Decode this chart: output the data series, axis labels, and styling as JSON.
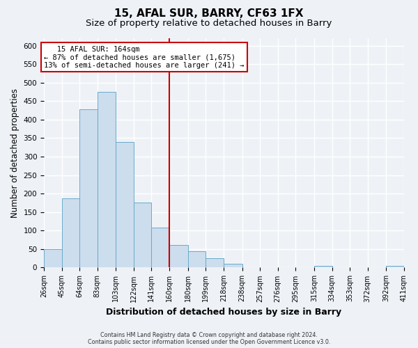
{
  "title": "15, AFAL SUR, BARRY, CF63 1FX",
  "subtitle": "Size of property relative to detached houses in Barry",
  "xlabel": "Distribution of detached houses by size in Barry",
  "ylabel": "Number of detached properties",
  "footer_line1": "Contains HM Land Registry data © Crown copyright and database right 2024.",
  "footer_line2": "Contains public sector information licensed under the Open Government Licence v3.0.",
  "bin_labels": [
    "26sqm",
    "45sqm",
    "64sqm",
    "83sqm",
    "103sqm",
    "122sqm",
    "141sqm",
    "160sqm",
    "180sqm",
    "199sqm",
    "218sqm",
    "238sqm",
    "257sqm",
    "276sqm",
    "295sqm",
    "315sqm",
    "334sqm",
    "353sqm",
    "372sqm",
    "392sqm",
    "411sqm"
  ],
  "bin_edges": [
    26,
    45,
    64,
    83,
    103,
    122,
    141,
    160,
    180,
    199,
    218,
    238,
    257,
    276,
    295,
    315,
    334,
    353,
    372,
    392,
    411
  ],
  "bar_heights": [
    50,
    188,
    428,
    475,
    340,
    175,
    108,
    62,
    45,
    25,
    10,
    0,
    0,
    0,
    0,
    5,
    0,
    0,
    0,
    5
  ],
  "bar_color": "#ccdded",
  "bar_edge_color": "#6aaacb",
  "vline_x": 160,
  "vline_color": "#cc0000",
  "annotation_title": "15 AFAL SUR: 164sqm",
  "annotation_line2": "← 87% of detached houses are smaller (1,675)",
  "annotation_line3": "13% of semi-detached houses are larger (241) →",
  "annotation_box_color": "#ffffff",
  "annotation_border_color": "#cc0000",
  "ylim": [
    0,
    620
  ],
  "yticks": [
    0,
    50,
    100,
    150,
    200,
    250,
    300,
    350,
    400,
    450,
    500,
    550,
    600
  ],
  "background_color": "#eef2f7",
  "grid_color": "#ffffff",
  "title_fontsize": 11,
  "subtitle_fontsize": 9.5
}
